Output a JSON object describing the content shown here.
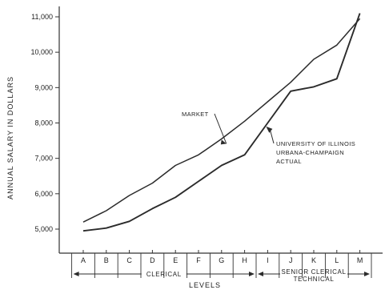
{
  "chart_data": {
    "type": "line",
    "title": "",
    "xlabel": "LEVELS",
    "ylabel": "ANNUAL SALARY IN DOLLARS",
    "categories": [
      "A",
      "B",
      "C",
      "D",
      "E",
      "F",
      "G",
      "H",
      "I",
      "J",
      "K",
      "L",
      "M"
    ],
    "ylim": [
      4300,
      11200
    ],
    "yticks": [
      5000,
      6000,
      7000,
      8000,
      9000,
      10000,
      11000
    ],
    "ytick_labels": [
      "5,000",
      "6,000",
      "7,000",
      "8,000",
      "9,000",
      "10,000",
      "11,000"
    ],
    "grid": false,
    "series": [
      {
        "name": "MARKET",
        "values": [
          5200,
          5520,
          5950,
          6300,
          6800,
          7100,
          7550,
          8050,
          8600,
          9150,
          9800,
          10200,
          10950
        ]
      },
      {
        "name": "UNIVERSITY OF ILLINOIS URBANA-CHAMPAIGN ACTUAL",
        "values": [
          4950,
          5030,
          5220,
          5580,
          5900,
          6350,
          6800,
          7100,
          8000,
          8900,
          9020,
          9250,
          11100
        ]
      }
    ],
    "annotations": {
      "market": "MARKET",
      "actual_lines": [
        "UNIVERSITY OF ILLINOIS",
        "URBANA-CHAMPAIGN",
        "ACTUAL"
      ]
    },
    "groups": [
      {
        "label_lines": [
          "CLERICAL"
        ],
        "from": "A",
        "to": "H"
      },
      {
        "label_lines": [
          "SENIOR CLERICAL",
          "TECHNICAL"
        ],
        "from": "I",
        "to": "M"
      }
    ],
    "colors": {
      "line": "#2b2b2b",
      "axis": "#333333"
    }
  }
}
